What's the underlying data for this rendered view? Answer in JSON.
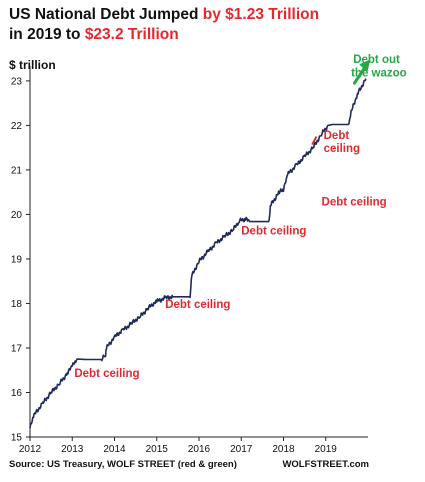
{
  "title": {
    "part1": "US National Debt Jumped ",
    "part2": "by $1.23 Trillion",
    "part3": "in 2019 to ",
    "part4": "$23.2 Trillion"
  },
  "unit_label": "$ trillion",
  "footer": {
    "source": "Source: US Treasury, WOLF STREET (red & green)",
    "brand": "WOLFSTREET.com"
  },
  "colors": {
    "line": "#1f2a5a",
    "accent_red": "#e02a2e",
    "accent_green": "#27a844"
  },
  "chart_data": {
    "type": "line",
    "title": "US National Debt Jumped by $1.23 Trillion in 2019 to $23.2 Trillion",
    "ylabel": "$ trillion",
    "xlabel": "",
    "xlim": [
      2012,
      2020
    ],
    "ylim": [
      15,
      23.2
    ],
    "x_ticks": [
      "2012",
      "2013",
      "2014",
      "2015",
      "2016",
      "2017",
      "2018",
      "2019"
    ],
    "y_ticks": [
      "15",
      "16",
      "17",
      "18",
      "19",
      "20",
      "21",
      "22",
      "23"
    ],
    "grid": false,
    "legend": "none",
    "series": [
      {
        "x": [
          2012.0,
          2012.1,
          2012.3,
          2012.5,
          2012.7,
          2012.9,
          2013.0,
          2013.1,
          2013.13,
          2013.38,
          2013.7,
          2013.79,
          2013.81,
          2014.0,
          2014.2,
          2014.4,
          2014.6,
          2014.8,
          2015.0,
          2015.2,
          2015.38,
          2015.6,
          2015.79,
          2015.82,
          2016.0,
          2016.2,
          2016.4,
          2016.6,
          2016.8,
          2016.95,
          2017.1,
          2017.2,
          2017.45,
          2017.66,
          2017.69,
          2017.9,
          2018.0,
          2018.1,
          2018.3,
          2018.5,
          2018.7,
          2018.9,
          2019.05,
          2019.15,
          2019.55,
          2019.6,
          2019.75,
          2019.95
        ],
        "y": [
          15.2,
          15.5,
          15.75,
          16.0,
          16.2,
          16.45,
          16.6,
          16.7,
          16.75,
          16.74,
          16.74,
          16.85,
          17.0,
          17.25,
          17.4,
          17.55,
          17.7,
          17.9,
          18.05,
          18.12,
          18.15,
          18.15,
          18.15,
          18.6,
          18.95,
          19.15,
          19.35,
          19.5,
          19.65,
          19.85,
          19.9,
          19.84,
          19.84,
          19.84,
          20.2,
          20.5,
          20.55,
          20.9,
          21.1,
          21.3,
          21.5,
          21.8,
          22.0,
          22.02,
          22.02,
          22.3,
          22.7,
          23.05
        ]
      }
    ],
    "annotations": [
      {
        "text": "Debt ceiling",
        "x": 2013.05,
        "y": 16.35,
        "color": "red"
      },
      {
        "text": "Debt ceiling",
        "x": 2015.2,
        "y": 17.9,
        "color": "red"
      },
      {
        "text": "Debt ceiling",
        "x": 2017.0,
        "y": 19.55,
        "color": "red"
      },
      {
        "text": "Debt ceiling",
        "x": 2018.9,
        "y": 20.2,
        "color": "red"
      },
      {
        "text": "Debt",
        "x": 2018.95,
        "y": 21.7,
        "color": "red"
      },
      {
        "text": "ceiling",
        "x": 2018.95,
        "y": 21.4,
        "color": "red"
      },
      {
        "text": "Debt out",
        "x": 2019.65,
        "y": 23.4,
        "color": "green"
      },
      {
        "text": "the wazoo",
        "x": 2019.6,
        "y": 23.1,
        "color": "green"
      }
    ]
  }
}
